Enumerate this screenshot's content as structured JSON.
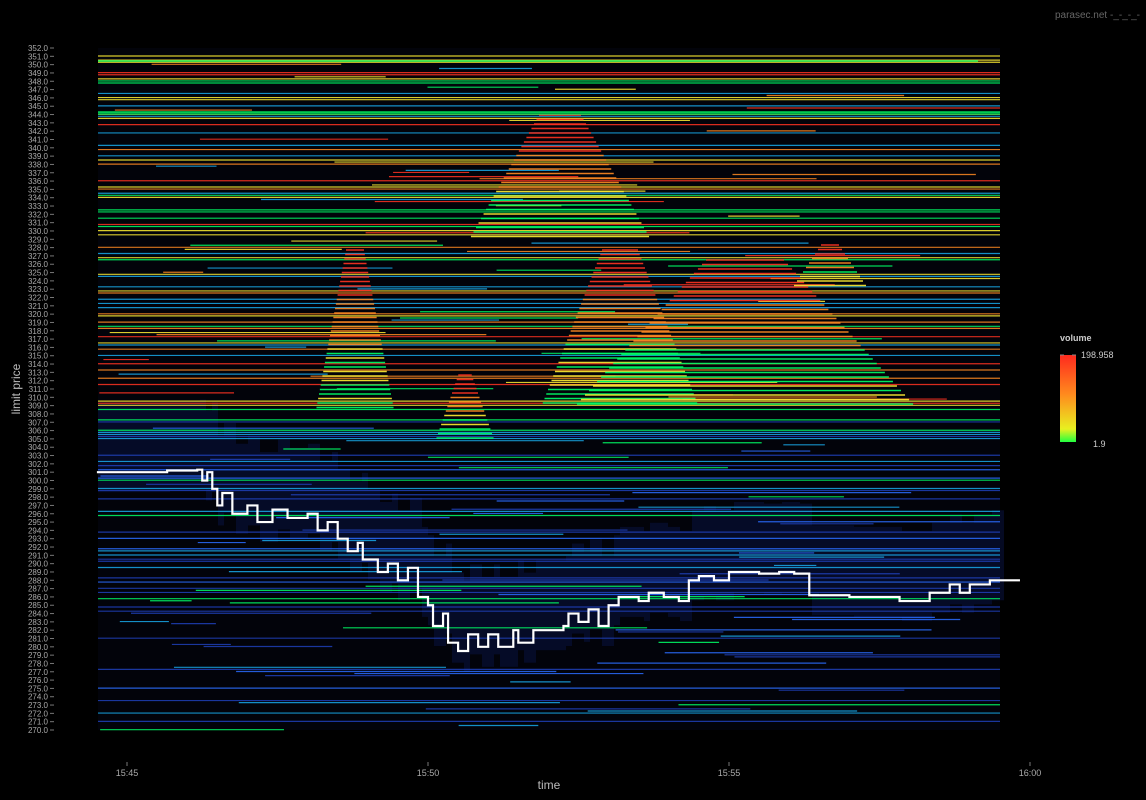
{
  "watermark": "parasec.net -_-_-_-",
  "chart_data": {
    "type": "heatmap",
    "title": "",
    "xlabel": "time",
    "ylabel": "limit price",
    "x_range": [
      "15:44:30",
      "16:00:00"
    ],
    "y_range": [
      270.0,
      352.0
    ],
    "x_ticks": [
      "15:45",
      "15:50",
      "15:55",
      "16:00"
    ],
    "y_ticks_first": "270.0",
    "y_ticks_last": "352.0",
    "y_tick_step": 1.0,
    "legend": {
      "title": "volume",
      "max_label": "198.958",
      "min_label": "1.9",
      "placement": "right",
      "colors": [
        "#ff2a1e",
        "#ff8a1e",
        "#e8f020",
        "#20ff40"
      ]
    },
    "background_color": "#000000",
    "depth_colors": [
      "#1f3fb8",
      "#2a6cff",
      "#18a8e8",
      "#00ff66",
      "#ffee33",
      "#ff8a22",
      "#ff3322"
    ],
    "price_series": {
      "name": "",
      "color": "#ffffff",
      "points": [
        [
          "15:44:30",
          301.0
        ],
        [
          "15:45:10",
          301.0
        ],
        [
          "15:45:40",
          301.2
        ],
        [
          "15:46:10",
          301.3
        ],
        [
          "15:46:15",
          300.0
        ],
        [
          "15:46:20",
          301.0
        ],
        [
          "15:46:25",
          299.0
        ],
        [
          "15:46:30",
          297.0
        ],
        [
          "15:46:35",
          298.5
        ],
        [
          "15:46:45",
          296.0
        ],
        [
          "15:47:00",
          297.0
        ],
        [
          "15:47:10",
          295.0
        ],
        [
          "15:47:25",
          296.5
        ],
        [
          "15:47:40",
          295.5
        ],
        [
          "15:48:00",
          296.0
        ],
        [
          "15:48:10",
          294.0
        ],
        [
          "15:48:20",
          295.0
        ],
        [
          "15:48:30",
          293.0
        ],
        [
          "15:48:40",
          291.5
        ],
        [
          "15:48:50",
          292.5
        ],
        [
          "15:48:55",
          290.5
        ],
        [
          "15:49:10",
          289.0
        ],
        [
          "15:49:20",
          290.0
        ],
        [
          "15:49:30",
          288.0
        ],
        [
          "15:49:40",
          289.5
        ],
        [
          "15:49:50",
          286.0
        ],
        [
          "15:50:00",
          285.0
        ],
        [
          "15:50:05",
          282.5
        ],
        [
          "15:50:15",
          284.0
        ],
        [
          "15:50:20",
          280.5
        ],
        [
          "15:50:30",
          279.5
        ],
        [
          "15:50:40",
          281.5
        ],
        [
          "15:50:50",
          280.0
        ],
        [
          "15:51:00",
          281.5
        ],
        [
          "15:51:10",
          280.0
        ],
        [
          "15:51:25",
          282.0
        ],
        [
          "15:51:30",
          280.5
        ],
        [
          "15:51:45",
          282.0
        ],
        [
          "15:52:00",
          282.0
        ],
        [
          "15:52:15",
          282.5
        ],
        [
          "15:52:20",
          284.0
        ],
        [
          "15:52:30",
          283.0
        ],
        [
          "15:52:40",
          284.5
        ],
        [
          "15:52:50",
          282.5
        ],
        [
          "15:53:00",
          285.0
        ],
        [
          "15:53:10",
          286.0
        ],
        [
          "15:53:30",
          285.5
        ],
        [
          "15:53:40",
          286.5
        ],
        [
          "15:53:55",
          286.0
        ],
        [
          "15:54:10",
          285.5
        ],
        [
          "15:54:20",
          288.0
        ],
        [
          "15:54:30",
          288.5
        ],
        [
          "15:54:45",
          288.0
        ],
        [
          "15:55:00",
          289.0
        ],
        [
          "15:55:30",
          288.8
        ],
        [
          "15:55:50",
          289.0
        ],
        [
          "15:56:05",
          288.8
        ],
        [
          "15:56:20",
          286.2
        ],
        [
          "15:57:00",
          286.0
        ],
        [
          "15:57:30",
          286.0
        ],
        [
          "15:57:50",
          285.5
        ],
        [
          "15:58:10",
          285.5
        ],
        [
          "15:58:20",
          286.5
        ],
        [
          "15:58:40",
          287.5
        ],
        [
          "15:58:50",
          286.5
        ],
        [
          "15:59:00",
          287.5
        ],
        [
          "15:59:20",
          288.0
        ],
        [
          "15:59:50",
          288.0
        ]
      ]
    }
  }
}
